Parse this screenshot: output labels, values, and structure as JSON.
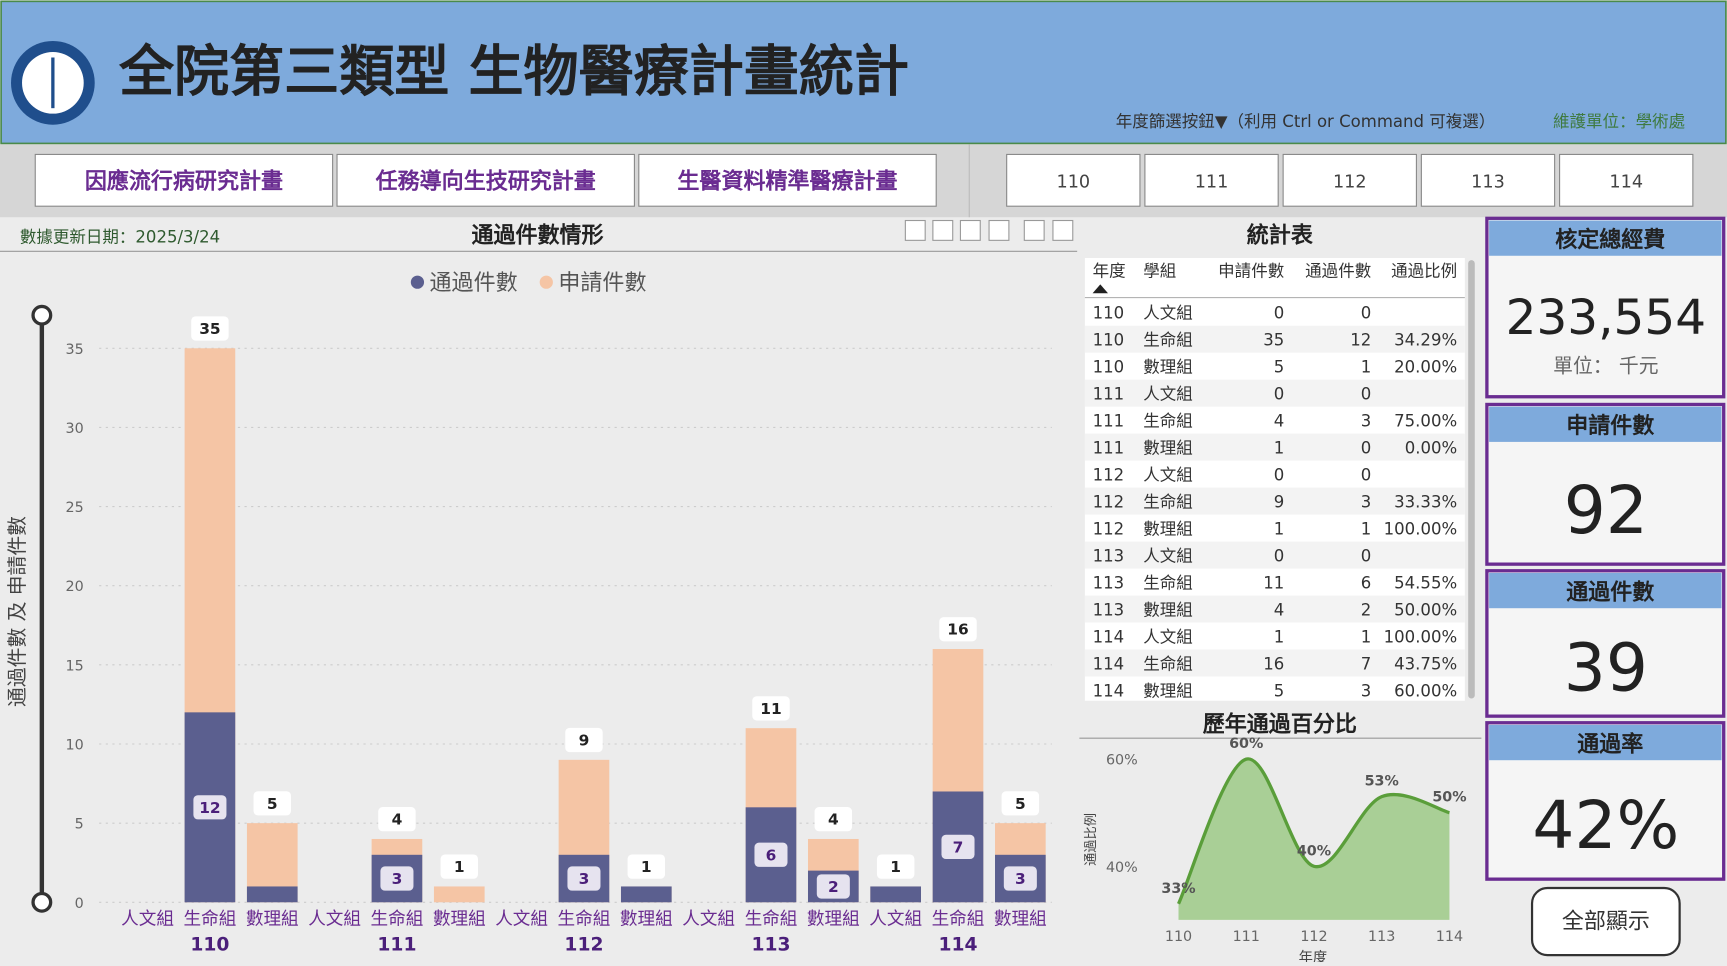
{
  "header": {
    "title": "全院第三類型 生物醫療計畫統計",
    "filter_hint": "年度篩選按鈕▼（利用 Ctrl or Command  可複選）",
    "maintainer": "維護單位：學術處"
  },
  "tabs": [
    "因應流行病研究計畫",
    "任務導向生技研究計畫",
    "生醫資料精準醫療計畫"
  ],
  "year_buttons": [
    "110",
    "111",
    "112",
    "113",
    "114"
  ],
  "update_date": "數據更新日期：2025/3/24",
  "bar_chart": {
    "type": "bar",
    "title": "通過件數情形",
    "y_title": "通過件數 及 申請件數",
    "categories": [
      "人文組",
      "生命組",
      "數理組",
      "人文組",
      "生命組",
      "數理組",
      "人文組",
      "生命組",
      "數理組",
      "人文組",
      "生命組",
      "數理組",
      "人文組",
      "生命組",
      "數理組"
    ],
    "group_labels": [
      "110",
      "111",
      "112",
      "113",
      "114"
    ],
    "ylim": [
      0,
      35
    ],
    "yticks": [
      0,
      5,
      10,
      15,
      20,
      25,
      30,
      35
    ],
    "grid": true,
    "series": [
      {
        "name": "通過件數",
        "color": "#5b5f8f",
        "values": [
          0,
          12,
          1,
          0,
          3,
          0,
          0,
          3,
          1,
          0,
          6,
          2,
          1,
          7,
          3
        ]
      },
      {
        "name": "申請件數",
        "color": "#f5c5a5",
        "values": [
          0,
          35,
          5,
          0,
          4,
          1,
          0,
          9,
          1,
          0,
          11,
          4,
          1,
          16,
          5
        ]
      }
    ]
  },
  "table": {
    "title": "統計表",
    "columns": [
      "年度",
      "學組",
      "申請件數",
      "通過件數",
      "通過比例"
    ],
    "rows": [
      [
        "110",
        "人文組",
        "0",
        "0",
        null
      ],
      [
        "110",
        "生命組",
        "35",
        "12",
        "34.29%"
      ],
      [
        "110",
        "數理組",
        "5",
        "1",
        "20.00%"
      ],
      [
        "111",
        "人文組",
        "0",
        "0",
        null
      ],
      [
        "111",
        "生命組",
        "4",
        "3",
        "75.00%"
      ],
      [
        "111",
        "數理組",
        "1",
        "0",
        "0.00%"
      ],
      [
        "112",
        "人文組",
        "0",
        "0",
        null
      ],
      [
        "112",
        "生命組",
        "9",
        "3",
        "33.33%"
      ],
      [
        "112",
        "數理組",
        "1",
        "1",
        "100.00%"
      ],
      [
        "113",
        "人文組",
        "0",
        "0",
        null
      ],
      [
        "113",
        "生命組",
        "11",
        "6",
        "54.55%"
      ],
      [
        "113",
        "數理組",
        "4",
        "2",
        "50.00%"
      ],
      [
        "114",
        "人文組",
        "1",
        "1",
        "100.00%"
      ],
      [
        "114",
        "生命組",
        "16",
        "7",
        "43.75%"
      ],
      [
        "114",
        "數理組",
        "5",
        "3",
        "60.00%"
      ]
    ]
  },
  "line_chart": {
    "type": "area",
    "title": "歷年通過百分比",
    "y_title": "通過比例",
    "x_title": "年度",
    "x": [
      110,
      111,
      112,
      113,
      114
    ],
    "values": [
      33,
      60,
      40,
      53,
      50
    ],
    "value_labels": [
      "33%",
      "60%",
      "40%",
      "53%",
      "50%"
    ],
    "xlim": [
      110,
      114
    ],
    "xticks": [
      110,
      111,
      112,
      113,
      114
    ],
    "ylim": [
      30,
      60
    ],
    "yticks": [
      {
        "value": 40,
        "label": "40%"
      },
      {
        "value": 60,
        "label": "60%"
      }
    ],
    "color": "#5a9e3a"
  },
  "kpis": [
    {
      "title": "核定總經費",
      "value": "233,554",
      "unit": "單位： 千元"
    },
    {
      "title": "申請件數",
      "value": "92"
    },
    {
      "title": "通過件數",
      "value": "39"
    },
    {
      "title": "通過率",
      "value": "42%"
    }
  ],
  "show_all": "全部顯示"
}
